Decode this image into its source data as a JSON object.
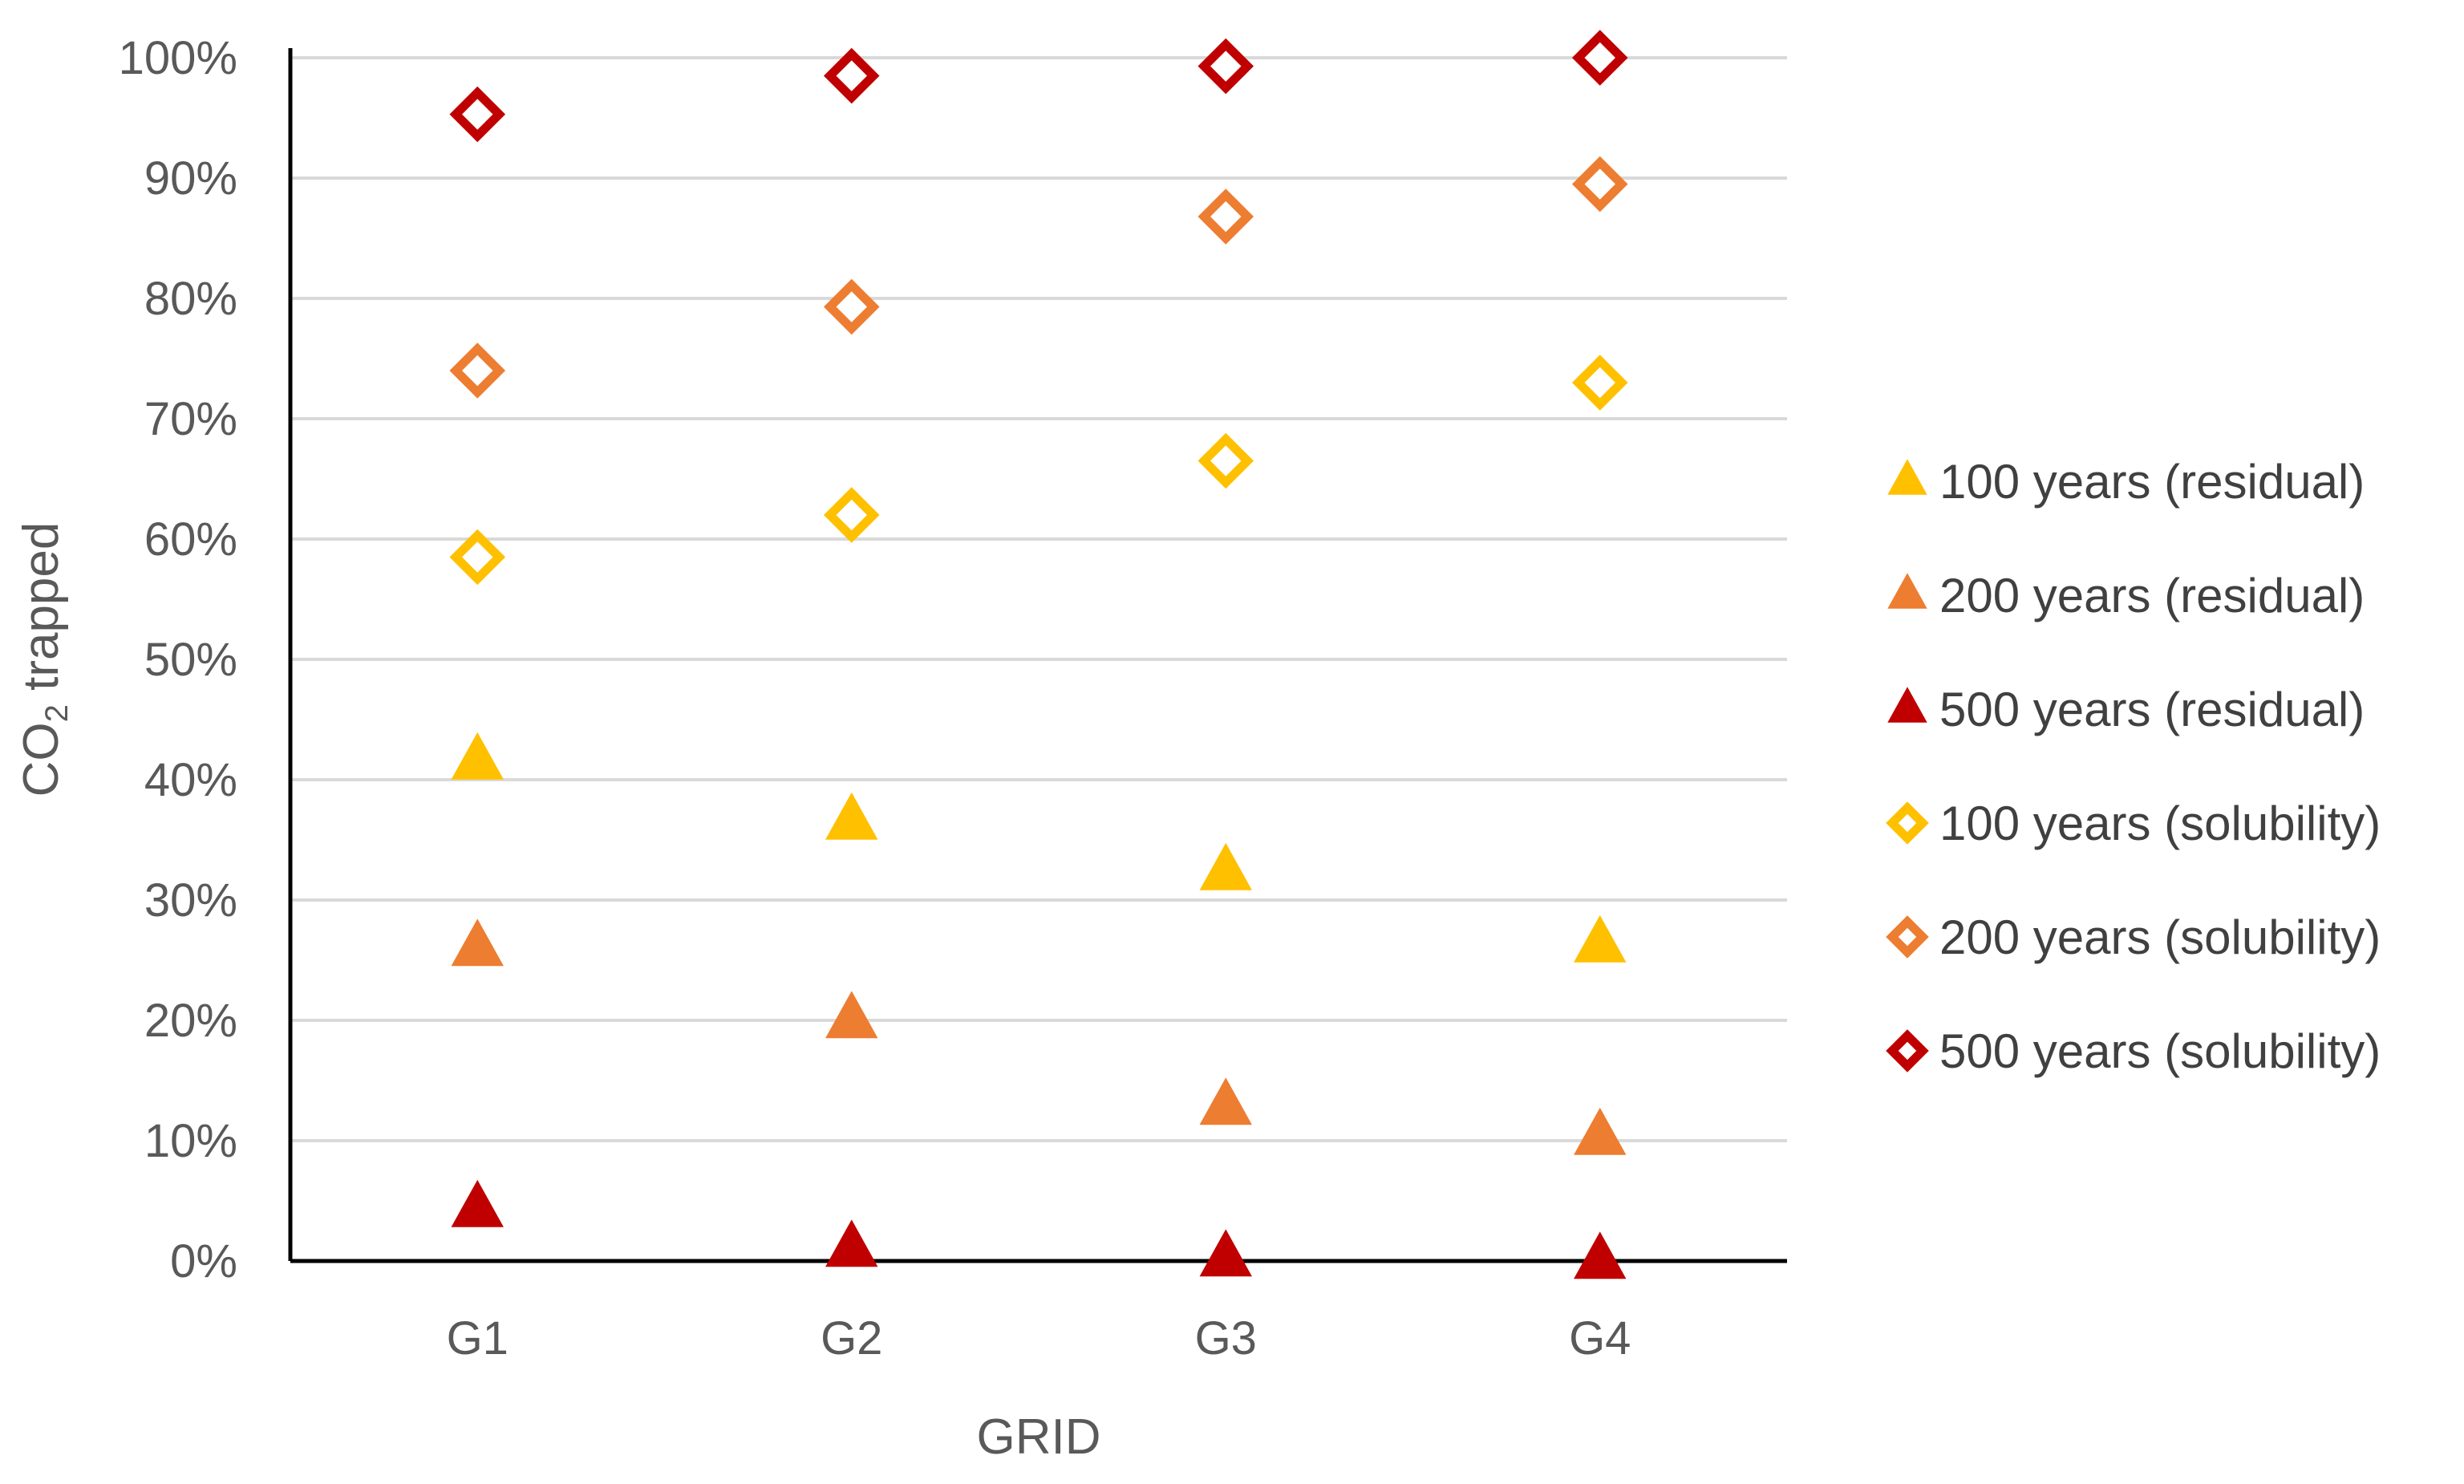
{
  "chart_data": {
    "type": "scatter",
    "title": "",
    "xlabel": "GRID",
    "ylabel_main": "CO",
    "ylabel_sub": "2",
    "ylabel_rest": " trapped",
    "categories": [
      "G1",
      "G2",
      "G3",
      "G4"
    ],
    "ylim": [
      0,
      100
    ],
    "yticks": [
      0,
      10,
      20,
      30,
      40,
      50,
      60,
      70,
      80,
      90,
      100
    ],
    "ytick_labels": [
      "0%",
      "10%",
      "20%",
      "30%",
      "40%",
      "50%",
      "60%",
      "70%",
      "80%",
      "90%",
      "100%"
    ],
    "grid": true,
    "legend_position": "right",
    "series": [
      {
        "name": "100 years (residual)",
        "marker": "triangle",
        "color": "#FFC000",
        "values": [
          41.5,
          36.5,
          32.3,
          26.3
        ]
      },
      {
        "name": "200 years (residual)",
        "marker": "triangle",
        "color": "#ED7D31",
        "values": [
          26.0,
          20.0,
          12.8,
          10.3
        ]
      },
      {
        "name": "500 years (residual)",
        "marker": "triangle",
        "color": "#C00000",
        "values": [
          4.3,
          1.0,
          0.2,
          0.0
        ]
      },
      {
        "name": "100 years (solubility)",
        "marker": "diamond",
        "color": "#FFC000",
        "values": [
          58.5,
          62.0,
          66.5,
          73.0
        ]
      },
      {
        "name": "200 years (solubility)",
        "marker": "diamond",
        "color": "#ED7D31",
        "values": [
          74.0,
          79.3,
          86.8,
          89.5
        ]
      },
      {
        "name": "500 years (solubility)",
        "marker": "diamond",
        "color": "#C00000",
        "values": [
          95.3,
          98.5,
          99.3,
          100.0
        ]
      }
    ]
  }
}
